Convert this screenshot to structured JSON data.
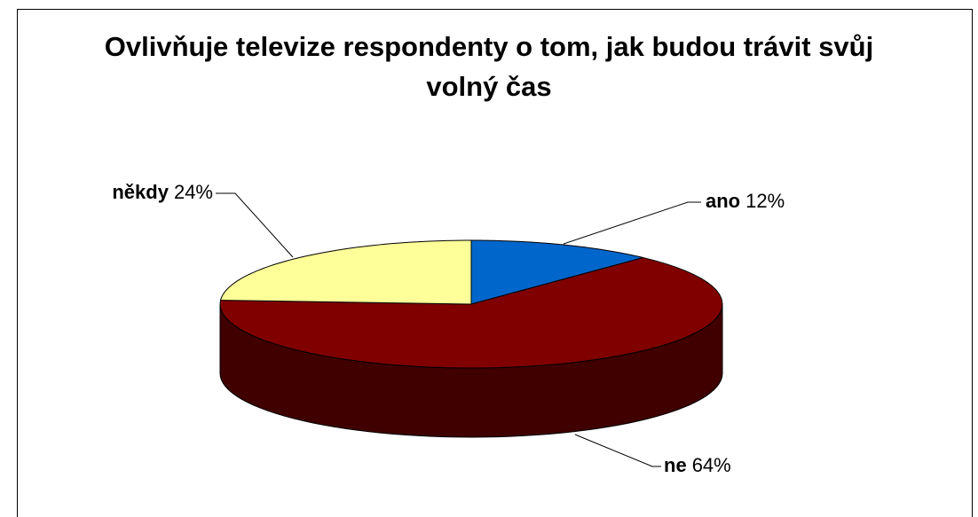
{
  "chart_data": {
    "type": "pie3d",
    "title": "Ovlivňuje televize respondenty o tom, jak budou trávit svůj volný čas",
    "categories": [
      "ano",
      "ne",
      "někdy"
    ],
    "values": [
      12,
      64,
      24
    ],
    "value_labels": [
      "12%",
      "64%",
      "24%"
    ],
    "colors": [
      "#0066cc",
      "#800000",
      "#ffff99"
    ],
    "side_colors": [
      "#003366",
      "#400000",
      "#80804c"
    ]
  }
}
